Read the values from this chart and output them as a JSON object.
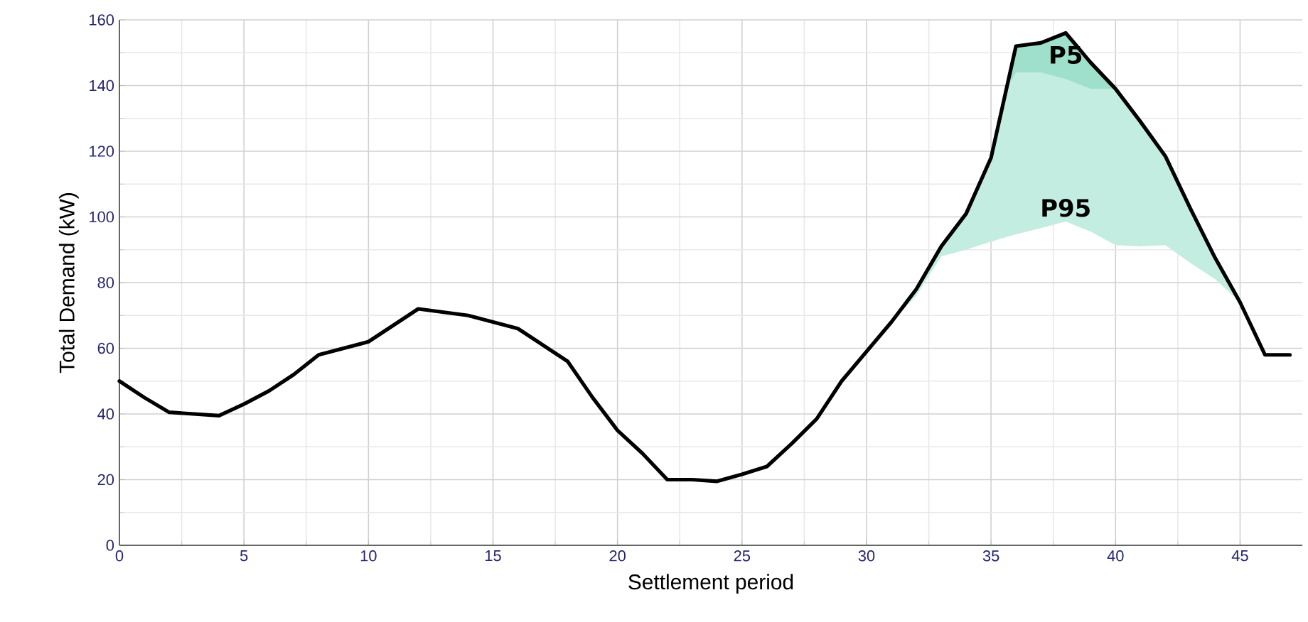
{
  "chart_data": {
    "type": "line",
    "xlabel": "Settlement period",
    "ylabel": "Total Demand (kW)",
    "xlim": [
      0,
      47.5
    ],
    "ylim": [
      0,
      160
    ],
    "xticks": [
      0,
      5,
      10,
      15,
      20,
      25,
      30,
      35,
      40,
      45
    ],
    "yticks": [
      0,
      20,
      40,
      60,
      80,
      100,
      120,
      140,
      160
    ],
    "grid": true,
    "x": [
      0,
      1,
      2,
      3,
      4,
      5,
      6,
      7,
      8,
      9,
      10,
      11,
      12,
      13,
      14,
      15,
      16,
      17,
      18,
      19,
      20,
      21,
      22,
      23,
      24,
      25,
      26,
      27,
      28,
      29,
      30,
      31,
      32,
      33,
      34,
      35,
      36,
      37,
      38,
      39,
      40,
      41,
      42,
      43,
      44,
      45,
      46,
      47
    ],
    "series": [
      {
        "color": "#000000",
        "values": [
          50,
          45,
          40.5,
          40,
          39.5,
          43,
          47,
          52,
          58,
          60,
          62,
          67,
          72,
          71,
          70,
          68,
          66,
          61,
          56,
          45,
          35,
          28,
          20,
          20,
          19.5,
          21.6,
          24,
          31,
          38.5,
          50,
          59,
          68,
          78,
          91,
          101,
          118,
          152,
          153,
          156,
          147,
          139,
          129,
          118.5,
          102.6,
          87.5,
          74,
          58,
          58
        ]
      },
      {
        "type": "area",
        "color": "#c4ede1",
        "x": [
          31,
          32,
          33,
          34,
          35,
          36,
          37,
          38,
          39,
          40,
          41,
          42,
          43,
          44,
          45
        ],
        "values": [
          null,
          null,
          null,
          null,
          null,
          null,
          null,
          null,
          null,
          null,
          null,
          null,
          null,
          null,
          null
        ],
        "upper": [
          68,
          78,
          91,
          101,
          118,
          152,
          153,
          156,
          147,
          139,
          129,
          118.5,
          102.6,
          87.5,
          74
        ],
        "lower": [
          68,
          76,
          88,
          90,
          92.5,
          94.7,
          96.6,
          98.6,
          95.5,
          91.4,
          91,
          91.4,
          86,
          81,
          74
        ]
      },
      {
        "type": "area",
        "color": "#9ee0cc",
        "x": [
          35.5,
          36,
          37,
          38,
          39,
          40
        ],
        "values": [
          null,
          null,
          null,
          null,
          null,
          null
        ],
        "upper": [
          137,
          152,
          153,
          156,
          147,
          139
        ],
        "lower": [
          137,
          144,
          144,
          142,
          139,
          139
        ]
      }
    ],
    "annotations": [
      "P5",
      "P95"
    ]
  }
}
